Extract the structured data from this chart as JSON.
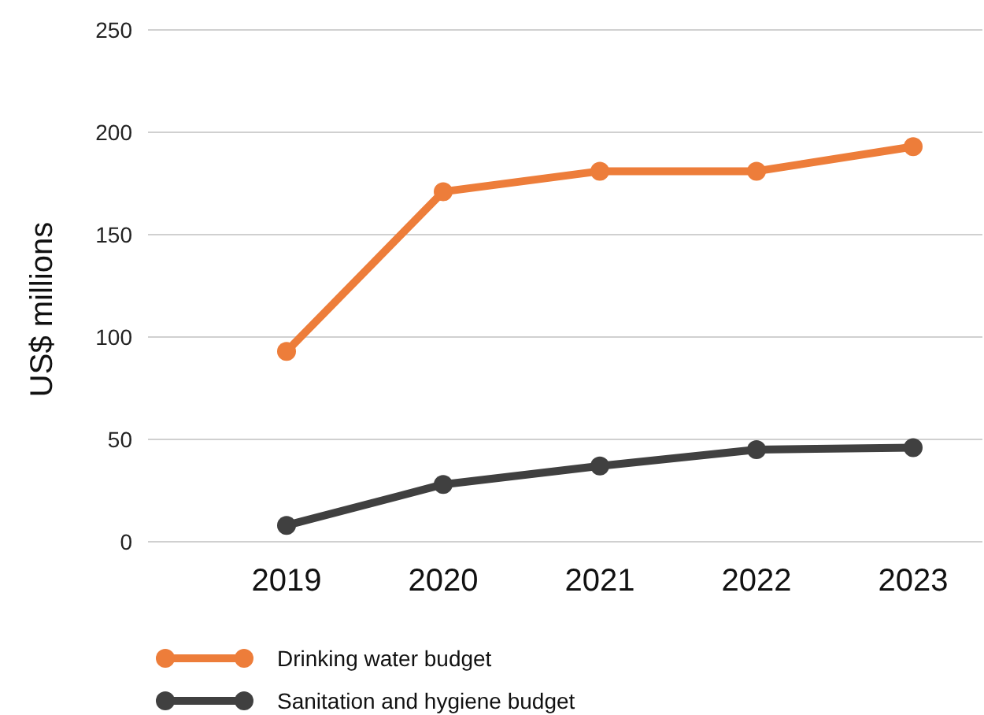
{
  "chart_data": {
    "type": "line",
    "ylabel": "US$ millions",
    "categories": [
      "2019",
      "2020",
      "2021",
      "2022",
      "2023"
    ],
    "series": [
      {
        "name": "Drinking water budget",
        "color": "#ed7d3a",
        "values": [
          93,
          171,
          181,
          181,
          193
        ]
      },
      {
        "name": "Sanitation and hygiene budget",
        "color": "#404040",
        "values": [
          8,
          28,
          37,
          45,
          46
        ]
      }
    ],
    "ylim": [
      0,
      250
    ],
    "yticks": [
      0,
      50,
      100,
      150,
      200,
      250
    ],
    "grid": "y",
    "legend": "bottom left",
    "marker": "circle",
    "line_style": "solid"
  }
}
